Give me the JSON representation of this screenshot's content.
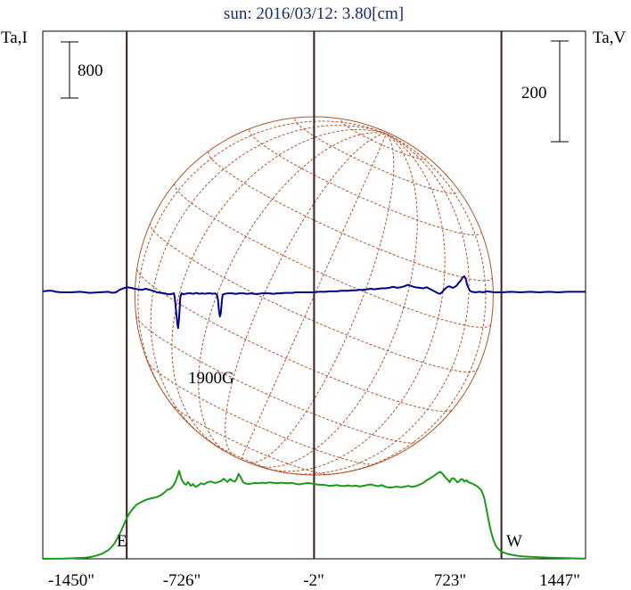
{
  "chart_data": {
    "type": "line",
    "title": "sun: 2016/03/12: 3.80[cm]",
    "left_axis_label": "Ta,I",
    "right_axis_label": "Ta,V",
    "left_scale_bar_label": "800",
    "right_scale_bar_label": "200",
    "x_unit": "arcsec",
    "x_ticks": [
      "-1450\"",
      "-726\"",
      "-2\"",
      "723\"",
      "1447\""
    ],
    "xlim": [
      -1450,
      1447
    ],
    "markers": [
      {
        "label": "E",
        "x": -1002
      },
      {
        "label": "",
        "x": -2
      },
      {
        "label": "W",
        "x": 998
      }
    ],
    "annotations": [
      {
        "text": "1900G"
      }
    ],
    "colors": {
      "intensity": "#1a9a1a",
      "circular_polarization": "#00008b",
      "disk_grid": "#b5552a",
      "markers": "#3c1c1c",
      "title": "#1c2a6e"
    },
    "series": [
      {
        "key": "intensity",
        "points": [
          [
            -1450,
            0.5
          ],
          [
            -1410,
            1.5
          ],
          [
            -1380,
            0.8
          ],
          [
            -1340,
            3
          ],
          [
            -1300,
            6
          ],
          [
            -1260,
            11
          ],
          [
            -1220,
            17
          ],
          [
            -1190,
            28
          ],
          [
            -1160,
            48
          ],
          [
            -1130,
            78
          ],
          [
            -1100,
            125
          ],
          [
            -1080,
            175
          ],
          [
            -1065,
            230
          ],
          [
            -1050,
            300
          ],
          [
            -1035,
            380
          ],
          [
            -1020,
            470
          ],
          [
            -1005,
            560
          ],
          [
            -990,
            640
          ],
          [
            -970,
            710
          ],
          [
            -950,
            770
          ],
          [
            -920,
            815
          ],
          [
            -890,
            850
          ],
          [
            -860,
            868
          ],
          [
            -840,
            880
          ],
          [
            -820,
            905
          ],
          [
            -800,
            945
          ],
          [
            -785,
            985
          ],
          [
            -770,
            995
          ],
          [
            -755,
            1035
          ],
          [
            -740,
            1110
          ],
          [
            -730,
            1190
          ],
          [
            -722,
            1255
          ],
          [
            -715,
            1180
          ],
          [
            -705,
            1110
          ],
          [
            -695,
            1070
          ],
          [
            -685,
            1055
          ],
          [
            -675,
            1095
          ],
          [
            -660,
            1040
          ],
          [
            -648,
            1065
          ],
          [
            -635,
            1025
          ],
          [
            -620,
            1045
          ],
          [
            -605,
            1075
          ],
          [
            -590,
            1060
          ],
          [
            -575,
            1085
          ],
          [
            -560,
            1100
          ],
          [
            -545,
            1095
          ],
          [
            -530,
            1080
          ],
          [
            -515,
            1095
          ],
          [
            -500,
            1105
          ],
          [
            -485,
            1140
          ],
          [
            -475,
            1120
          ],
          [
            -465,
            1095
          ],
          [
            -450,
            1135
          ],
          [
            -440,
            1115
          ],
          [
            -425,
            1100
          ],
          [
            -415,
            1135
          ],
          [
            -405,
            1210
          ],
          [
            -395,
            1170
          ],
          [
            -380,
            1090
          ],
          [
            -370,
            1075
          ],
          [
            -355,
            1065
          ],
          [
            -340,
            1070
          ],
          [
            -320,
            1080
          ],
          [
            -300,
            1075
          ],
          [
            -280,
            1085
          ],
          [
            -260,
            1080
          ],
          [
            -240,
            1090
          ],
          [
            -220,
            1082
          ],
          [
            -200,
            1078
          ],
          [
            -180,
            1085
          ],
          [
            -160,
            1080
          ],
          [
            -140,
            1075
          ],
          [
            -120,
            1082
          ],
          [
            -100,
            1068
          ],
          [
            -80,
            1060
          ],
          [
            -60,
            1070
          ],
          [
            -40,
            1080
          ],
          [
            -20,
            1075
          ],
          [
            0,
            1065
          ],
          [
            20,
            1058
          ],
          [
            40,
            1055
          ],
          [
            60,
            1050
          ],
          [
            80,
            1040
          ],
          [
            100,
            1042
          ],
          [
            120,
            1050
          ],
          [
            140,
            1040
          ],
          [
            160,
            1036
          ],
          [
            180,
            1046
          ],
          [
            200,
            1035
          ],
          [
            220,
            1042
          ],
          [
            240,
            1030
          ],
          [
            260,
            1040
          ],
          [
            280,
            1050
          ],
          [
            300,
            1060
          ],
          [
            320,
            1045
          ],
          [
            340,
            1035
          ],
          [
            360,
            1050
          ],
          [
            380,
            1025
          ],
          [
            400,
            1015
          ],
          [
            420,
            1020
          ],
          [
            440,
            1028
          ],
          [
            460,
            1018
          ],
          [
            480,
            1025
          ],
          [
            500,
            1040
          ],
          [
            520,
            1025
          ],
          [
            540,
            1035
          ],
          [
            560,
            1055
          ],
          [
            580,
            1080
          ],
          [
            600,
            1120
          ],
          [
            620,
            1150
          ],
          [
            640,
            1185
          ],
          [
            660,
            1225
          ],
          [
            672,
            1240
          ],
          [
            685,
            1210
          ],
          [
            700,
            1155
          ],
          [
            712,
            1125
          ],
          [
            722,
            1090
          ],
          [
            732,
            1140
          ],
          [
            742,
            1150
          ],
          [
            752,
            1125
          ],
          [
            762,
            1090
          ],
          [
            772,
            1105
          ],
          [
            780,
            1130
          ],
          [
            790,
            1135
          ],
          [
            800,
            1100
          ],
          [
            812,
            1120
          ],
          [
            822,
            1090
          ],
          [
            835,
            1080
          ],
          [
            850,
            1060
          ],
          [
            870,
            1030
          ],
          [
            890,
            980
          ],
          [
            905,
            880
          ],
          [
            915,
            750
          ],
          [
            925,
            610
          ],
          [
            935,
            470
          ],
          [
            945,
            360
          ],
          [
            955,
            270
          ],
          [
            965,
            205
          ],
          [
            975,
            160
          ],
          [
            990,
            120
          ],
          [
            1005,
            95
          ],
          [
            1025,
            75
          ],
          [
            1050,
            58
          ],
          [
            1080,
            45
          ],
          [
            1110,
            36
          ],
          [
            1150,
            28
          ],
          [
            1200,
            22
          ],
          [
            1250,
            17
          ],
          [
            1300,
            13
          ],
          [
            1350,
            9
          ],
          [
            1400,
            5
          ],
          [
            1430,
            3
          ],
          [
            1447,
            2
          ]
        ]
      },
      {
        "key": "circular_polarization",
        "points": [
          [
            -1450,
            2
          ],
          [
            -1420,
            3
          ],
          [
            -1400,
            3
          ],
          [
            -1380,
            1
          ],
          [
            -1350,
            0
          ],
          [
            -1300,
            0
          ],
          [
            -1250,
            1
          ],
          [
            -1200,
            -1
          ],
          [
            -1150,
            0
          ],
          [
            -1100,
            1
          ],
          [
            -1080,
            -1
          ],
          [
            -1060,
            0
          ],
          [
            -1040,
            5
          ],
          [
            -1020,
            8
          ],
          [
            -1000,
            10
          ],
          [
            -980,
            9
          ],
          [
            -960,
            7
          ],
          [
            -940,
            6
          ],
          [
            -920,
            5
          ],
          [
            -900,
            7
          ],
          [
            -880,
            5
          ],
          [
            -860,
            3
          ],
          [
            -840,
            0
          ],
          [
            -820,
            -1
          ],
          [
            -800,
            -2
          ],
          [
            -780,
            -4
          ],
          [
            -760,
            -3
          ],
          [
            -750,
            -2
          ],
          [
            -745,
            -12
          ],
          [
            -738,
            -40
          ],
          [
            -732,
            -60
          ],
          [
            -728,
            -71
          ],
          [
            -722,
            -50
          ],
          [
            -716,
            -10
          ],
          [
            -710,
            -2
          ],
          [
            -700,
            -4
          ],
          [
            -690,
            -3
          ],
          [
            -675,
            -2
          ],
          [
            -660,
            -2
          ],
          [
            -645,
            -3
          ],
          [
            -630,
            -1
          ],
          [
            -615,
            -3
          ],
          [
            -600,
            -2
          ],
          [
            -585,
            -3
          ],
          [
            -570,
            -2
          ],
          [
            -555,
            -2
          ],
          [
            -545,
            -3
          ],
          [
            -530,
            -2
          ],
          [
            -520,
            -5
          ],
          [
            -515,
            -15
          ],
          [
            -510,
            -35
          ],
          [
            -505,
            -48
          ],
          [
            -500,
            -42
          ],
          [
            -495,
            -20
          ],
          [
            -490,
            -5
          ],
          [
            -480,
            -3
          ],
          [
            -460,
            -2
          ],
          [
            -440,
            -2
          ],
          [
            -420,
            -3
          ],
          [
            -400,
            -2
          ],
          [
            -380,
            -2
          ],
          [
            -360,
            -3
          ],
          [
            -340,
            -2
          ],
          [
            -320,
            -3
          ],
          [
            -300,
            -3
          ],
          [
            -280,
            -2
          ],
          [
            -260,
            -2
          ],
          [
            -240,
            -2
          ],
          [
            -220,
            -3
          ],
          [
            -200,
            -2
          ],
          [
            -180,
            -2
          ],
          [
            -160,
            -1
          ],
          [
            -140,
            -1
          ],
          [
            -120,
            -1
          ],
          [
            -100,
            0
          ],
          [
            -80,
            0
          ],
          [
            -60,
            0
          ],
          [
            -40,
            0
          ],
          [
            -20,
            0
          ],
          [
            0,
            0
          ],
          [
            20,
            1
          ],
          [
            40,
            1
          ],
          [
            60,
            1
          ],
          [
            80,
            2
          ],
          [
            100,
            2
          ],
          [
            120,
            2
          ],
          [
            140,
            3
          ],
          [
            160,
            3
          ],
          [
            180,
            3
          ],
          [
            200,
            4
          ],
          [
            220,
            4
          ],
          [
            240,
            5
          ],
          [
            260,
            5
          ],
          [
            280,
            6
          ],
          [
            300,
            7
          ],
          [
            320,
            6
          ],
          [
            340,
            7
          ],
          [
            360,
            8
          ],
          [
            380,
            8
          ],
          [
            400,
            9
          ],
          [
            420,
            11
          ],
          [
            440,
            9
          ],
          [
            460,
            10
          ],
          [
            480,
            12
          ],
          [
            500,
            15
          ],
          [
            520,
            12
          ],
          [
            540,
            10
          ],
          [
            560,
            9
          ],
          [
            580,
            8
          ],
          [
            600,
            10
          ],
          [
            620,
            6
          ],
          [
            640,
            2
          ],
          [
            660,
            -2
          ],
          [
            670,
            -3
          ],
          [
            680,
            0
          ],
          [
            690,
            4
          ],
          [
            700,
            8
          ],
          [
            710,
            11
          ],
          [
            720,
            12
          ],
          [
            730,
            10
          ],
          [
            740,
            9
          ],
          [
            750,
            11
          ],
          [
            760,
            14
          ],
          [
            770,
            19
          ],
          [
            780,
            23
          ],
          [
            790,
            29
          ],
          [
            800,
            32
          ],
          [
            808,
            26
          ],
          [
            815,
            15
          ],
          [
            822,
            9
          ],
          [
            830,
            3
          ],
          [
            840,
            1
          ],
          [
            860,
            0
          ],
          [
            880,
            1
          ],
          [
            900,
            0
          ],
          [
            920,
            2
          ],
          [
            940,
            1
          ],
          [
            960,
            0
          ],
          [
            980,
            0
          ],
          [
            1000,
            0
          ],
          [
            1050,
            1
          ],
          [
            1100,
            0
          ],
          [
            1150,
            1
          ],
          [
            1200,
            0
          ],
          [
            1250,
            1
          ],
          [
            1300,
            0
          ],
          [
            1350,
            1
          ],
          [
            1400,
            1
          ],
          [
            1447,
            1
          ]
        ]
      }
    ]
  }
}
